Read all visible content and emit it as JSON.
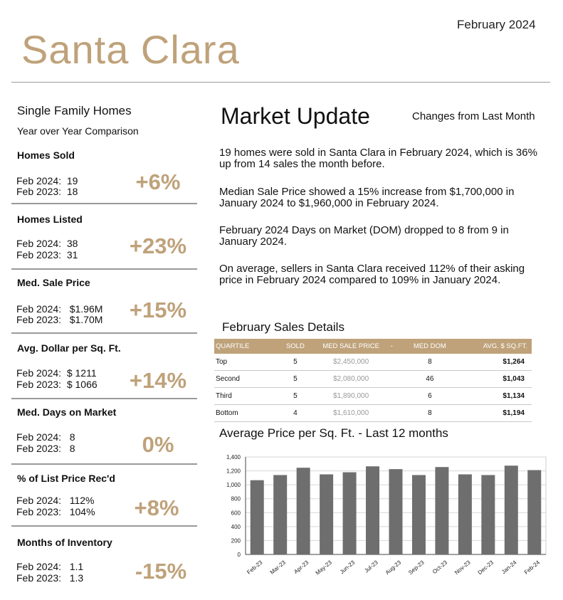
{
  "header": {
    "date": "February 2024",
    "city": "Santa Clara"
  },
  "left": {
    "subtitle": "Single Family Homes",
    "subtitle2": "Year over Year Comparison",
    "stats": [
      {
        "title": "Homes Sold",
        "line1": "Feb 2024:  19",
        "line2": "Feb 2023:  18",
        "change": "+6%"
      },
      {
        "title": "Homes Listed",
        "line1": "Feb 2024:  38",
        "line2": "Feb 2023:  31",
        "change": "+23%"
      },
      {
        "title": "Med. Sale Price",
        "line1": "Feb 2024:   $1.96M",
        "line2": "Feb 2023:   $1.70M",
        "change": "+15%"
      },
      {
        "title": "Avg. Dollar per Sq. Ft.",
        "line1": "Feb 2024:  $ 1211",
        "line2": "Feb 2023:  $ 1066",
        "change": "+14%"
      },
      {
        "title": "Med. Days on Market",
        "line1": "Feb 2024:   8",
        "line2": "Feb 2023:   8",
        "change": "0%"
      },
      {
        "title": "% of List Price Rec'd",
        "line1": "Feb 2024:   112%",
        "line2": "Feb 2023:   104%",
        "change": "+8%"
      },
      {
        "title": "Months of Inventory",
        "line1": "Feb 2024:   1.1",
        "line2": "Feb 2023:   1.3",
        "change": "-15%"
      }
    ]
  },
  "market": {
    "title": "Market Update",
    "changes_label": "Changes from Last Month",
    "paragraphs": [
      "19 homes were sold in Santa Clara in February 2024, which is 36% up from 14 sales the month before.",
      "Median Sale Price showed a 15% increase from $1,700,000 in January 2024 to $1,960,000 in February 2024.",
      "February 2024 Days on Market (DOM) dropped to 8 from 9 in January 2024.",
      "On average, sellers in Santa Clara received 112% of their asking price in February 2024 compared to 109% in January 2024."
    ]
  },
  "sales": {
    "title": "February Sales Details",
    "headers": [
      "QUARTILE",
      "SOLD",
      "MED SALE PRICE",
      "-",
      "MED DOM",
      "AVG. $ SQ.FT."
    ],
    "rows": [
      [
        "Top",
        "5",
        "$2,450,000",
        "",
        "8",
        "$1,264"
      ],
      [
        "Second",
        "5",
        "$2,080,000",
        "",
        "46",
        "$1,043"
      ],
      [
        "Third",
        "5",
        "$1,890,000",
        "",
        "6",
        "$1,134"
      ],
      [
        "Bottom",
        "4",
        "$1,610,000",
        "",
        "8",
        "$1,194"
      ]
    ]
  },
  "chart_data": {
    "type": "bar",
    "title": "Average Price per Sq. Ft. - Last 12 months",
    "categories": [
      "Feb-23",
      "Mar-23",
      "Apr-23",
      "May-23",
      "Jun-23",
      "Jul-23",
      "Aug-23",
      "Sep-23",
      "Oct-23",
      "Nov-23",
      "Dec-23",
      "Jan-24",
      "Feb-24"
    ],
    "values": [
      1066,
      1140,
      1245,
      1150,
      1180,
      1265,
      1225,
      1140,
      1255,
      1150,
      1140,
      1275,
      1211
    ],
    "ylim": [
      0,
      1400
    ],
    "yticks": [
      "0",
      "200",
      "400",
      "600",
      "800",
      "1,000",
      "1,200",
      "1,400"
    ],
    "grid": true,
    "bar_color": "#6e6e6e"
  }
}
